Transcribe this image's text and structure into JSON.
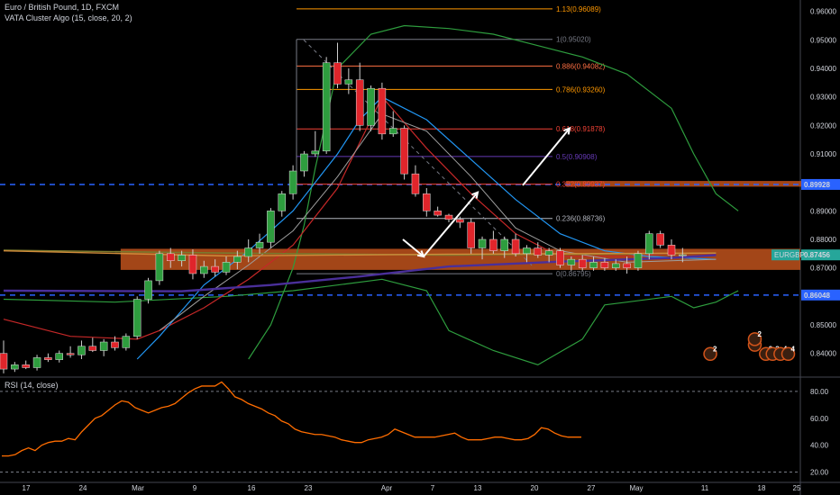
{
  "header": {
    "symbol_line": "Euro / British Pound, 1D, FXCM",
    "indicator_line": "VATA Cluster Algo (15, close, 20, 2)",
    "rsi_line": "RSI (14, close)"
  },
  "colors": {
    "background": "#000000",
    "bull": "#2e9d3e",
    "bear": "#e0252b",
    "fib": "#ff9800",
    "zone": "#c0521c",
    "dashed_level": "#2962ff",
    "rsi": "#ff6d00",
    "arrow": "#ffffff"
  },
  "price_labels": {
    "current": "EURGBP",
    "current_value": "0.87456",
    "level_upper": "0.89928",
    "level_lower": "0.86048"
  },
  "chart_data": [
    {
      "type": "candlestick",
      "title": "Euro / British Pound, 1D, FXCM",
      "ylim": [
        0.832,
        0.964
      ],
      "y_ticks": [
        "0.96000",
        "0.95000",
        "0.94000",
        "0.93000",
        "0.92000",
        "0.91000",
        "0.90000",
        "0.89000",
        "0.88000",
        "0.87000",
        "0.86000",
        "0.85000",
        "0.84000"
      ],
      "x_ticks": [
        "17",
        "24",
        "Mar",
        "9",
        "16",
        "23",
        "Apr",
        "7",
        "13",
        "20",
        "27",
        "May",
        "11",
        "18",
        "25"
      ],
      "candles": [
        {
          "o": 0.84,
          "h": 0.8445,
          "l": 0.833,
          "c": 0.8345
        },
        {
          "o": 0.8345,
          "h": 0.837,
          "l": 0.8335,
          "c": 0.836
        },
        {
          "o": 0.836,
          "h": 0.8375,
          "l": 0.8345,
          "c": 0.835
        },
        {
          "o": 0.835,
          "h": 0.8395,
          "l": 0.834,
          "c": 0.8385
        },
        {
          "o": 0.8385,
          "h": 0.84,
          "l": 0.837,
          "c": 0.8378
        },
        {
          "o": 0.8378,
          "h": 0.841,
          "l": 0.8368,
          "c": 0.84
        },
        {
          "o": 0.84,
          "h": 0.8425,
          "l": 0.8385,
          "c": 0.8395
        },
        {
          "o": 0.8395,
          "h": 0.8445,
          "l": 0.838,
          "c": 0.8425
        },
        {
          "o": 0.8425,
          "h": 0.8455,
          "l": 0.8405,
          "c": 0.841
        },
        {
          "o": 0.841,
          "h": 0.845,
          "l": 0.839,
          "c": 0.844
        },
        {
          "o": 0.844,
          "h": 0.846,
          "l": 0.841,
          "c": 0.842
        },
        {
          "o": 0.842,
          "h": 0.847,
          "l": 0.841,
          "c": 0.846
        },
        {
          "o": 0.846,
          "h": 0.86,
          "l": 0.845,
          "c": 0.859
        },
        {
          "o": 0.859,
          "h": 0.8665,
          "l": 0.8575,
          "c": 0.8655
        },
        {
          "o": 0.8655,
          "h": 0.876,
          "l": 0.864,
          "c": 0.875
        },
        {
          "o": 0.875,
          "h": 0.877,
          "l": 0.87,
          "c": 0.8725
        },
        {
          "o": 0.8725,
          "h": 0.876,
          "l": 0.8705,
          "c": 0.8745
        },
        {
          "o": 0.8745,
          "h": 0.8765,
          "l": 0.866,
          "c": 0.868
        },
        {
          "o": 0.868,
          "h": 0.8725,
          "l": 0.8665,
          "c": 0.8705
        },
        {
          "o": 0.8705,
          "h": 0.873,
          "l": 0.867,
          "c": 0.8685
        },
        {
          "o": 0.8685,
          "h": 0.874,
          "l": 0.8675,
          "c": 0.872
        },
        {
          "o": 0.872,
          "h": 0.876,
          "l": 0.8695,
          "c": 0.874
        },
        {
          "o": 0.874,
          "h": 0.88,
          "l": 0.872,
          "c": 0.877
        },
        {
          "o": 0.877,
          "h": 0.882,
          "l": 0.875,
          "c": 0.879
        },
        {
          "o": 0.879,
          "h": 0.891,
          "l": 0.877,
          "c": 0.89
        },
        {
          "o": 0.89,
          "h": 0.897,
          "l": 0.888,
          "c": 0.896
        },
        {
          "o": 0.896,
          "h": 0.906,
          "l": 0.894,
          "c": 0.904
        },
        {
          "o": 0.904,
          "h": 0.911,
          "l": 0.902,
          "c": 0.91
        },
        {
          "o": 0.91,
          "h": 0.918,
          "l": 0.909,
          "c": 0.911
        },
        {
          "o": 0.911,
          "h": 0.944,
          "l": 0.91,
          "c": 0.942
        },
        {
          "o": 0.942,
          "h": 0.949,
          "l": 0.933,
          "c": 0.9345
        },
        {
          "o": 0.9345,
          "h": 0.94,
          "l": 0.931,
          "c": 0.936
        },
        {
          "o": 0.936,
          "h": 0.942,
          "l": 0.918,
          "c": 0.92
        },
        {
          "o": 0.92,
          "h": 0.934,
          "l": 0.918,
          "c": 0.933
        },
        {
          "o": 0.933,
          "h": 0.935,
          "l": 0.915,
          "c": 0.917
        },
        {
          "o": 0.917,
          "h": 0.925,
          "l": 0.916,
          "c": 0.919
        },
        {
          "o": 0.919,
          "h": 0.92,
          "l": 0.901,
          "c": 0.903
        },
        {
          "o": 0.903,
          "h": 0.906,
          "l": 0.895,
          "c": 0.896
        },
        {
          "o": 0.896,
          "h": 0.898,
          "l": 0.888,
          "c": 0.89
        },
        {
          "o": 0.89,
          "h": 0.8915,
          "l": 0.888,
          "c": 0.8885
        },
        {
          "o": 0.8885,
          "h": 0.889,
          "l": 0.886,
          "c": 0.887
        },
        {
          "o": 0.887,
          "h": 0.888,
          "l": 0.884,
          "c": 0.886
        },
        {
          "o": 0.886,
          "h": 0.8875,
          "l": 0.875,
          "c": 0.877
        },
        {
          "o": 0.877,
          "h": 0.881,
          "l": 0.873,
          "c": 0.88
        },
        {
          "o": 0.88,
          "h": 0.883,
          "l": 0.875,
          "c": 0.876
        },
        {
          "o": 0.876,
          "h": 0.881,
          "l": 0.8735,
          "c": 0.88
        },
        {
          "o": 0.88,
          "h": 0.882,
          "l": 0.874,
          "c": 0.875
        },
        {
          "o": 0.875,
          "h": 0.878,
          "l": 0.872,
          "c": 0.877
        },
        {
          "o": 0.877,
          "h": 0.879,
          "l": 0.8735,
          "c": 0.8745
        },
        {
          "o": 0.8745,
          "h": 0.877,
          "l": 0.872,
          "c": 0.876
        },
        {
          "o": 0.876,
          "h": 0.877,
          "l": 0.87,
          "c": 0.871
        },
        {
          "o": 0.871,
          "h": 0.874,
          "l": 0.869,
          "c": 0.873
        },
        {
          "o": 0.873,
          "h": 0.8745,
          "l": 0.869,
          "c": 0.87
        },
        {
          "o": 0.87,
          "h": 0.874,
          "l": 0.869,
          "c": 0.872
        },
        {
          "o": 0.872,
          "h": 0.8735,
          "l": 0.869,
          "c": 0.87
        },
        {
          "o": 0.87,
          "h": 0.873,
          "l": 0.869,
          "c": 0.8715
        },
        {
          "o": 0.8715,
          "h": 0.874,
          "l": 0.868,
          "c": 0.87
        },
        {
          "o": 0.87,
          "h": 0.876,
          "l": 0.869,
          "c": 0.875
        },
        {
          "o": 0.875,
          "h": 0.883,
          "l": 0.873,
          "c": 0.882
        },
        {
          "o": 0.882,
          "h": 0.883,
          "l": 0.877,
          "c": 0.878
        },
        {
          "o": 0.878,
          "h": 0.88,
          "l": 0.873,
          "c": 0.8745
        },
        {
          "o": 0.8745,
          "h": 0.877,
          "l": 0.872,
          "c": 0.8746
        }
      ],
      "fib_levels": [
        {
          "ratio": "1.13",
          "price": 0.96089,
          "label": "1.13(0.96089)",
          "color": "#ff9800"
        },
        {
          "ratio": "1",
          "price": 0.9502,
          "label": "1(0.95020)",
          "color": "#787b86"
        },
        {
          "ratio": "0.886",
          "price": 0.94082,
          "label": "0.886(0.94082)",
          "color": "#ff7043"
        },
        {
          "ratio": "0.786",
          "price": 0.9326,
          "label": "0.786(0.93260)",
          "color": "#ff9800"
        },
        {
          "ratio": "0.618",
          "price": 0.91878,
          "label": "0.618(0.91878)",
          "color": "#f44336"
        },
        {
          "ratio": "0.5",
          "price": 0.90908,
          "label": "0.5(0.90908)",
          "color": "#673ab7"
        },
        {
          "ratio": "0.382",
          "price": 0.89937,
          "label": "0.382(0.89937)",
          "color": "#f44336"
        },
        {
          "ratio": "0.236",
          "price": 0.88736,
          "label": "0.236(0.88736)",
          "color": "#b2b5be"
        },
        {
          "ratio": "0",
          "price": 0.86795,
          "label": "0(0.86795)",
          "color": "#787b86"
        }
      ],
      "zones": [
        {
          "low": 0.8693,
          "high": 0.8767,
          "from_candle": 11,
          "to": "right-edge",
          "color": "#c0521c"
        },
        {
          "low": 0.8985,
          "high": 0.9005,
          "from_candle": 51,
          "to_candle": 73,
          "color": "#c0521c"
        }
      ],
      "horizontal_levels": [
        0.89928,
        0.86048
      ],
      "current_price": 0.87456,
      "bands": {
        "upper_green": [
          [
            22,
            0.838
          ],
          [
            24,
            0.85
          ],
          [
            26,
            0.87
          ],
          [
            27,
            0.885
          ],
          [
            28,
            0.905
          ],
          [
            30,
            0.94
          ],
          [
            33,
            0.952
          ],
          [
            36,
            0.955
          ],
          [
            40,
            0.954
          ],
          [
            44,
            0.952
          ],
          [
            48,
            0.948
          ],
          [
            52,
            0.944
          ],
          [
            56,
            0.938
          ],
          [
            60,
            0.926
          ],
          [
            62,
            0.91
          ],
          [
            64,
            0.896
          ],
          [
            66,
            0.89
          ]
        ],
        "lower_green": [
          [
            0,
            0.859
          ],
          [
            10,
            0.858
          ],
          [
            20,
            0.86
          ],
          [
            26,
            0.862
          ],
          [
            30,
            0.864
          ],
          [
            34,
            0.866
          ],
          [
            38,
            0.862
          ],
          [
            40,
            0.848
          ],
          [
            44,
            0.841
          ],
          [
            48,
            0.836
          ],
          [
            52,
            0.845
          ],
          [
            54,
            0.857
          ],
          [
            56,
            0.858
          ],
          [
            60,
            0.86
          ],
          [
            62,
            0.856
          ],
          [
            64,
            0.858
          ],
          [
            66,
            0.862
          ]
        ],
        "red": [
          [
            0,
            0.852
          ],
          [
            6,
            0.846
          ],
          [
            12,
            0.845
          ],
          [
            14,
            0.848
          ],
          [
            18,
            0.856
          ],
          [
            22,
            0.866
          ],
          [
            26,
            0.878
          ],
          [
            30,
            0.898
          ],
          [
            34,
            0.93
          ],
          [
            38,
            0.912
          ],
          [
            42,
            0.896
          ],
          [
            46,
            0.882
          ],
          [
            50,
            0.874
          ],
          [
            56,
            0.874
          ],
          [
            60,
            0.875
          ],
          [
            64,
            0.875
          ]
        ],
        "blue": [
          [
            12,
            0.838
          ],
          [
            14,
            0.846
          ],
          [
            18,
            0.864
          ],
          [
            22,
            0.876
          ],
          [
            26,
            0.89
          ],
          [
            30,
            0.91
          ],
          [
            32,
            0.922
          ],
          [
            34,
            0.93
          ],
          [
            38,
            0.922
          ],
          [
            42,
            0.908
          ],
          [
            46,
            0.894
          ],
          [
            50,
            0.882
          ],
          [
            54,
            0.876
          ],
          [
            58,
            0.874
          ],
          [
            64,
            0.873
          ]
        ],
        "gray": [
          [
            14,
            0.848
          ],
          [
            18,
            0.86
          ],
          [
            22,
            0.871
          ],
          [
            26,
            0.883
          ],
          [
            30,
            0.902
          ],
          [
            34,
            0.924
          ],
          [
            38,
            0.918
          ],
          [
            42,
            0.902
          ],
          [
            46,
            0.884
          ],
          [
            50,
            0.876
          ],
          [
            56,
            0.872
          ],
          [
            64,
            0.873
          ]
        ],
        "olive": [
          [
            0,
            0.8762
          ],
          [
            20,
            0.8752
          ],
          [
            40,
            0.8745
          ],
          [
            64,
            0.8752
          ]
        ],
        "purple": [
          [
            0,
            0.862
          ],
          [
            16,
            0.8618
          ],
          [
            24,
            0.864
          ],
          [
            32,
            0.867
          ],
          [
            40,
            0.8705
          ],
          [
            50,
            0.8722
          ],
          [
            60,
            0.8735
          ],
          [
            64,
            0.8745
          ]
        ],
        "orange_ma": [
          [
            0,
            0.876
          ],
          [
            20,
            0.8742
          ],
          [
            40,
            0.8748
          ],
          [
            64,
            0.8752
          ]
        ]
      }
    },
    {
      "type": "line",
      "title": "RSI (14, close)",
      "ylim": [
        15,
        90
      ],
      "y_ticks": [
        "80.00",
        "60.00",
        "40.00",
        "20.00"
      ],
      "levels": [
        80,
        20
      ],
      "values": [
        32,
        32,
        33,
        36,
        38,
        36,
        40,
        42,
        43,
        43,
        45,
        44,
        50,
        55,
        60,
        62,
        66,
        70,
        73,
        72,
        68,
        66,
        64,
        66,
        68,
        69,
        71,
        75,
        79,
        82,
        84,
        84,
        84,
        87,
        82,
        76,
        74,
        71,
        69,
        67,
        64,
        62,
        58,
        56,
        52,
        50,
        49,
        48,
        48,
        47,
        46,
        44,
        43,
        42,
        42,
        44,
        45,
        46,
        48,
        52,
        50,
        48,
        46,
        46,
        46,
        46,
        47,
        48,
        49,
        46,
        44,
        44,
        44,
        45,
        46,
        46,
        45,
        44,
        44,
        45,
        48,
        53,
        52,
        49,
        47,
        46,
        46,
        46
      ]
    }
  ],
  "badges": [
    {
      "num": "2",
      "xi": 63,
      "y": 0.8398
    },
    {
      "num": "2",
      "xi": 67,
      "y": 0.843
    },
    {
      "num": "2",
      "xi": 67,
      "y": 0.845
    },
    {
      "num": "2",
      "xi": 68,
      "y": 0.8398
    },
    {
      "num": "3",
      "xi": 68.6,
      "y": 0.8398
    },
    {
      "num": "4",
      "xi": 69.3,
      "y": 0.8398
    },
    {
      "num": "4",
      "xi": 70,
      "y": 0.8398
    }
  ]
}
